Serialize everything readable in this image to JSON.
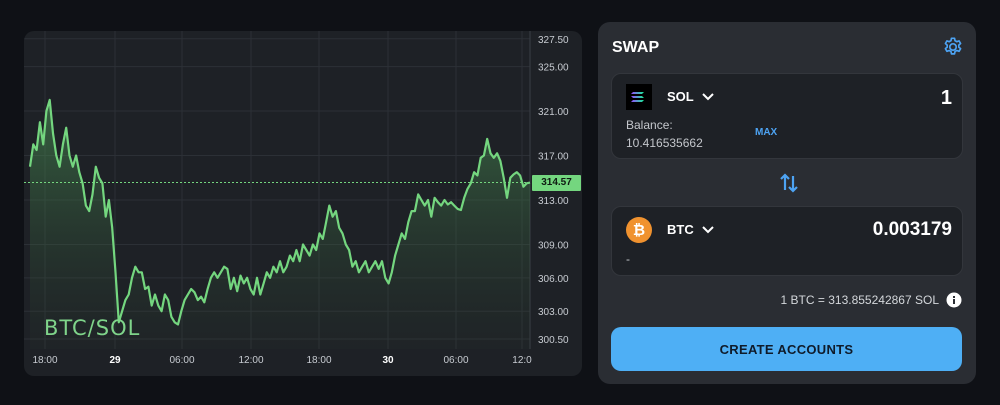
{
  "chart": {
    "pair_label": "BTC/SOL",
    "current_price": "314.57",
    "y_ticks": [
      "327.50",
      "325.00",
      "321.00",
      "317.00",
      "313.00",
      "309.00",
      "306.00",
      "303.00",
      "300.50"
    ],
    "x_ticks": [
      {
        "label": "18:00",
        "bold": false
      },
      {
        "label": "29",
        "bold": true
      },
      {
        "label": "06:00",
        "bold": false
      },
      {
        "label": "12:00",
        "bold": false
      },
      {
        "label": "18:00",
        "bold": false
      },
      {
        "label": "30",
        "bold": true
      },
      {
        "label": "06:00",
        "bold": false
      },
      {
        "label": "12:0",
        "bold": false
      }
    ],
    "line_color": "#74d67f"
  },
  "chart_data": {
    "type": "area",
    "title": "BTC/SOL",
    "xlabel": "",
    "ylabel": "",
    "ylim": [
      299.6,
      328.2
    ],
    "y": [
      316,
      318,
      317.5,
      320,
      318,
      321,
      322,
      319,
      317,
      316,
      318,
      319.5,
      317,
      316,
      317,
      315.5,
      314.5,
      312.5,
      312,
      313.5,
      316,
      315,
      314.5,
      311.5,
      313,
      310.5,
      306.5,
      302,
      303,
      304,
      304.5,
      306,
      307,
      306.5,
      306.5,
      305,
      305.2,
      303.5,
      304.5,
      303.5,
      303,
      304.5,
      304,
      302.5,
      302,
      301.8,
      303,
      304,
      304.5,
      305,
      304.7,
      304,
      304.3,
      303.8,
      305,
      306,
      306.5,
      306,
      306.5,
      307,
      306.8,
      305,
      306,
      304.8,
      306.2,
      305.5,
      306,
      305,
      304.5,
      306,
      304.5,
      305.5,
      306.5,
      306,
      307,
      306.5,
      307.5,
      306.5,
      307,
      308,
      307.5,
      308.5,
      307.5,
      309,
      308.5,
      308,
      309,
      308.5,
      310,
      309.5,
      311,
      312.5,
      311.5,
      312,
      310.5,
      310,
      309,
      308.5,
      307,
      307.5,
      306.5,
      307,
      307.5,
      306.5,
      307,
      307.5,
      306.8,
      307.5,
      306,
      305.5,
      306.5,
      308,
      309,
      310,
      309.5,
      311,
      312,
      312,
      313.5,
      313,
      312.5,
      313,
      311.5,
      313.2,
      312.8,
      312.5,
      313,
      312.6,
      312.8,
      312.5,
      312.2,
      312.1,
      313.2,
      314,
      314.5,
      315.5,
      315.2,
      316.8,
      317,
      318.5,
      317.2,
      316.8,
      317.2,
      316.5,
      315,
      313.2,
      315,
      315.3,
      315.5,
      315.2,
      314.2,
      314.5,
      314.57
    ]
  },
  "swap": {
    "title": "SWAP",
    "from": {
      "symbol": "SOL",
      "amount": "1",
      "balance_label": "Balance:",
      "balance_value": "10.416535662",
      "max_label": "MAX"
    },
    "to": {
      "symbol": "BTC",
      "amount": "0.003179",
      "sub_value": "-"
    },
    "rate": "1 BTC = 313.855242867 SOL",
    "cta_label": "CREATE ACCOUNTS",
    "accent": "#4eaff5"
  }
}
